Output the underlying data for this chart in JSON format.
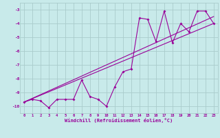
{
  "title": "",
  "xlabel": "Windchill (Refroidissement éolien,°C)",
  "ylabel": "",
  "bg_color": "#c8eaea",
  "line_color": "#990099",
  "grid_color": "#aacccc",
  "xlim": [
    -0.5,
    23.5
  ],
  "ylim": [
    -10.5,
    -2.5
  ],
  "yticks": [
    -10,
    -9,
    -8,
    -7,
    -6,
    -5,
    -4,
    -3
  ],
  "xticks": [
    0,
    1,
    2,
    3,
    4,
    5,
    6,
    7,
    8,
    9,
    10,
    11,
    12,
    13,
    14,
    15,
    16,
    17,
    18,
    19,
    20,
    21,
    22,
    23
  ],
  "data_x": [
    0,
    1,
    2,
    3,
    4,
    5,
    6,
    7,
    8,
    9,
    10,
    11,
    12,
    13,
    14,
    15,
    16,
    17,
    18,
    19,
    20,
    21,
    22,
    23
  ],
  "data_y": [
    -9.7,
    -9.5,
    -9.6,
    -10.1,
    -9.5,
    -9.5,
    -9.5,
    -8.1,
    -9.3,
    -9.5,
    -10.0,
    -8.6,
    -7.5,
    -7.3,
    -3.6,
    -3.7,
    -5.3,
    -3.1,
    -5.4,
    -4.0,
    -4.6,
    -3.1,
    -3.1,
    -4.0
  ],
  "trend1_x": [
    0,
    23
  ],
  "trend1_y": [
    -9.7,
    -3.5
  ],
  "trend2_x": [
    0,
    23
  ],
  "trend2_y": [
    -9.7,
    -4.0
  ]
}
